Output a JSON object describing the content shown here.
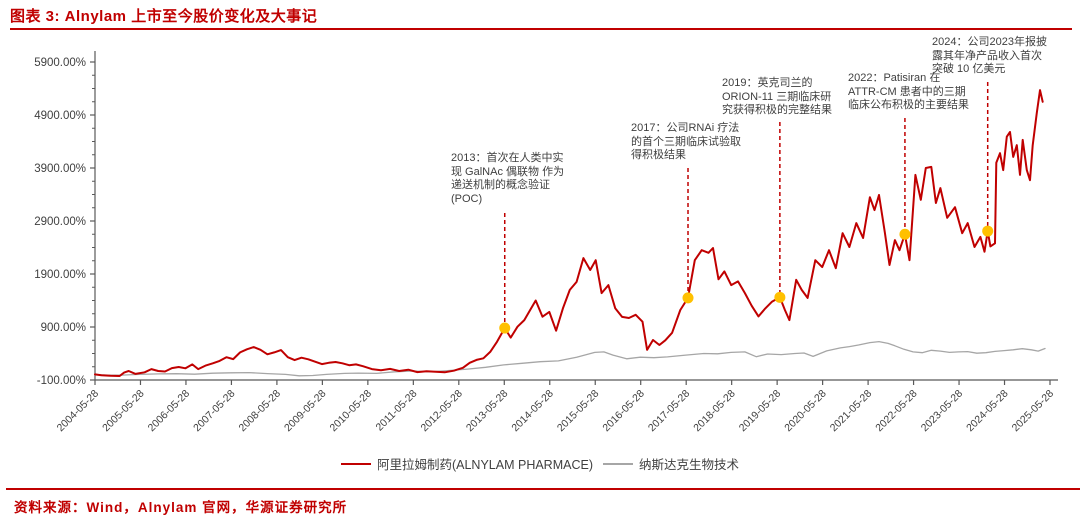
{
  "figure": {
    "title": "图表 3: Alnylam 上市至今股价变化及大事记"
  },
  "source": {
    "label": "资料来源：Wind，Alnylam 官网，华源证券研究所"
  },
  "colors": {
    "accent_red": "#C00000",
    "series_red": "#C00000",
    "series_gray": "#A6A6A6",
    "marker_orange": "#FFC000",
    "axis": "#595959",
    "text_dark": "#3F3F3F"
  },
  "legend": [
    {
      "label": "阿里拉姆制药(ALNYLAM PHARMACE)",
      "color": "#C00000"
    },
    {
      "label": "纳斯达克生物技术",
      "color": "#A6A6A6"
    }
  ],
  "chart_data": {
    "type": "line",
    "title": "Alnylam 上市至今股价变化及大事记",
    "xlabel": "",
    "ylabel": "",
    "grid": false,
    "legend_position": "bottom",
    "y_axis": {
      "min": -100,
      "max": 5900,
      "tick_values": [
        5900,
        4900,
        3900,
        2900,
        1900,
        900,
        -100
      ],
      "tick_labels": [
        "5900.00%",
        "4900.00%",
        "3900.00%",
        "2900.00%",
        "1900.00%",
        "900.00%",
        "-100.00%"
      ]
    },
    "x_axis": {
      "tick_labels": [
        "2004-05-28",
        "2005-05-28",
        "2006-05-28",
        "2007-05-28",
        "2008-05-28",
        "2009-05-28",
        "2010-05-28",
        "2011-05-28",
        "2012-05-28",
        "2013-05-28",
        "2014-05-28",
        "2015-05-28",
        "2016-05-28",
        "2017-05-28",
        "2018-05-28",
        "2019-05-28",
        "2020-05-28",
        "2021-05-28",
        "2022-05-28",
        "2023-05-28",
        "2024-05-28",
        "2025-05-28"
      ]
    },
    "series": [
      {
        "name": "阿里拉姆制药(ALNYLAM PHARMACE)",
        "color": "#C00000",
        "unit": "%",
        "points": [
          [
            2004.41,
            5
          ],
          [
            2004.55,
            -10
          ],
          [
            2004.75,
            -20
          ],
          [
            2004.95,
            -25
          ],
          [
            2005.05,
            40
          ],
          [
            2005.15,
            70
          ],
          [
            2005.3,
            15
          ],
          [
            2005.5,
            45
          ],
          [
            2005.65,
            105
          ],
          [
            2005.8,
            70
          ],
          [
            2005.95,
            60
          ],
          [
            2006.1,
            125
          ],
          [
            2006.25,
            145
          ],
          [
            2006.4,
            120
          ],
          [
            2006.55,
            195
          ],
          [
            2006.68,
            105
          ],
          [
            2006.85,
            175
          ],
          [
            2007.0,
            215
          ],
          [
            2007.15,
            260
          ],
          [
            2007.3,
            330
          ],
          [
            2007.45,
            295
          ],
          [
            2007.6,
            420
          ],
          [
            2007.75,
            480
          ],
          [
            2007.9,
            520
          ],
          [
            2008.05,
            470
          ],
          [
            2008.2,
            385
          ],
          [
            2008.35,
            420
          ],
          [
            2008.5,
            465
          ],
          [
            2008.65,
            330
          ],
          [
            2008.8,
            275
          ],
          [
            2008.95,
            320
          ],
          [
            2009.1,
            290
          ],
          [
            2009.25,
            245
          ],
          [
            2009.4,
            200
          ],
          [
            2009.55,
            225
          ],
          [
            2009.7,
            240
          ],
          [
            2009.85,
            215
          ],
          [
            2010.0,
            180
          ],
          [
            2010.15,
            195
          ],
          [
            2010.3,
            160
          ],
          [
            2010.5,
            105
          ],
          [
            2010.7,
            85
          ],
          [
            2010.9,
            110
          ],
          [
            2011.1,
            70
          ],
          [
            2011.3,
            95
          ],
          [
            2011.5,
            50
          ],
          [
            2011.7,
            65
          ],
          [
            2011.9,
            55
          ],
          [
            2012.1,
            45
          ],
          [
            2012.3,
            75
          ],
          [
            2012.5,
            130
          ],
          [
            2012.65,
            225
          ],
          [
            2012.8,
            280
          ],
          [
            2012.95,
            310
          ],
          [
            2013.1,
            430
          ],
          [
            2013.25,
            620
          ],
          [
            2013.42,
            880
          ],
          [
            2013.55,
            700
          ],
          [
            2013.7,
            905
          ],
          [
            2013.85,
            1030
          ],
          [
            2014.0,
            1250
          ],
          [
            2014.1,
            1400
          ],
          [
            2014.25,
            1095
          ],
          [
            2014.4,
            1185
          ],
          [
            2014.55,
            830
          ],
          [
            2014.7,
            1250
          ],
          [
            2014.85,
            1600
          ],
          [
            2015.0,
            1750
          ],
          [
            2015.15,
            2200
          ],
          [
            2015.3,
            1975
          ],
          [
            2015.42,
            2160
          ],
          [
            2015.55,
            1540
          ],
          [
            2015.7,
            1690
          ],
          [
            2015.85,
            1255
          ],
          [
            2016.0,
            1090
          ],
          [
            2016.15,
            1070
          ],
          [
            2016.3,
            1130
          ],
          [
            2016.45,
            1000
          ],
          [
            2016.55,
            470
          ],
          [
            2016.68,
            655
          ],
          [
            2016.82,
            560
          ],
          [
            2016.95,
            650
          ],
          [
            2017.1,
            790
          ],
          [
            2017.28,
            1220
          ],
          [
            2017.45,
            1450
          ],
          [
            2017.6,
            2160
          ],
          [
            2017.75,
            2350
          ],
          [
            2017.9,
            2300
          ],
          [
            2018.0,
            2390
          ],
          [
            2018.12,
            1800
          ],
          [
            2018.25,
            1950
          ],
          [
            2018.4,
            1690
          ],
          [
            2018.55,
            1760
          ],
          [
            2018.7,
            1540
          ],
          [
            2018.85,
            1300
          ],
          [
            2019.0,
            1100
          ],
          [
            2019.15,
            1250
          ],
          [
            2019.3,
            1380
          ],
          [
            2019.47,
            1460
          ],
          [
            2019.58,
            1220
          ],
          [
            2019.68,
            1030
          ],
          [
            2019.83,
            1790
          ],
          [
            2019.95,
            1600
          ],
          [
            2020.08,
            1450
          ],
          [
            2020.25,
            2160
          ],
          [
            2020.4,
            2030
          ],
          [
            2020.55,
            2350
          ],
          [
            2020.7,
            2010
          ],
          [
            2020.85,
            2670
          ],
          [
            2021.0,
            2410
          ],
          [
            2021.15,
            2860
          ],
          [
            2021.3,
            2580
          ],
          [
            2021.45,
            3350
          ],
          [
            2021.55,
            3105
          ],
          [
            2021.65,
            3390
          ],
          [
            2021.78,
            2675
          ],
          [
            2021.88,
            2070
          ],
          [
            2022.0,
            2540
          ],
          [
            2022.1,
            2350
          ],
          [
            2022.22,
            2650
          ],
          [
            2022.32,
            2160
          ],
          [
            2022.45,
            3770
          ],
          [
            2022.57,
            3300
          ],
          [
            2022.68,
            3900
          ],
          [
            2022.8,
            3920
          ],
          [
            2022.9,
            3240
          ],
          [
            2023.0,
            3520
          ],
          [
            2023.15,
            2960
          ],
          [
            2023.32,
            3160
          ],
          [
            2023.48,
            2670
          ],
          [
            2023.6,
            2860
          ],
          [
            2023.75,
            2410
          ],
          [
            2023.88,
            2600
          ],
          [
            2023.97,
            2320
          ],
          [
            2024.04,
            2710
          ],
          [
            2024.1,
            2420
          ],
          [
            2024.2,
            2480
          ],
          [
            2024.23,
            4000
          ],
          [
            2024.31,
            4180
          ],
          [
            2024.38,
            3860
          ],
          [
            2024.46,
            4490
          ],
          [
            2024.53,
            4580
          ],
          [
            2024.6,
            4110
          ],
          [
            2024.68,
            4330
          ],
          [
            2024.75,
            3770
          ],
          [
            2024.81,
            4430
          ],
          [
            2024.9,
            3860
          ],
          [
            2024.97,
            3670
          ],
          [
            2025.03,
            4330
          ],
          [
            2025.12,
            4940
          ],
          [
            2025.19,
            5370
          ],
          [
            2025.25,
            5150
          ]
        ]
      },
      {
        "name": "纳斯达克生物技术",
        "color": "#A6A6A6",
        "unit": "%",
        "points": [
          [
            2004.41,
            0
          ],
          [
            2004.7,
            -10
          ],
          [
            2005.0,
            -8
          ],
          [
            2005.4,
            5
          ],
          [
            2005.8,
            15
          ],
          [
            2006.2,
            18
          ],
          [
            2006.6,
            10
          ],
          [
            2007.0,
            28
          ],
          [
            2007.4,
            35
          ],
          [
            2007.8,
            40
          ],
          [
            2008.2,
            20
          ],
          [
            2008.6,
            5
          ],
          [
            2008.9,
            -20
          ],
          [
            2009.2,
            -15
          ],
          [
            2009.5,
            5
          ],
          [
            2009.9,
            25
          ],
          [
            2010.2,
            30
          ],
          [
            2010.6,
            25
          ],
          [
            2011.0,
            55
          ],
          [
            2011.4,
            70
          ],
          [
            2011.8,
            55
          ],
          [
            2012.2,
            80
          ],
          [
            2012.6,
            105
          ],
          [
            2013.0,
            140
          ],
          [
            2013.4,
            185
          ],
          [
            2013.8,
            215
          ],
          [
            2014.2,
            245
          ],
          [
            2014.6,
            260
          ],
          [
            2015.0,
            330
          ],
          [
            2015.4,
            420
          ],
          [
            2015.6,
            430
          ],
          [
            2015.8,
            370
          ],
          [
            2016.1,
            300
          ],
          [
            2016.4,
            330
          ],
          [
            2016.7,
            320
          ],
          [
            2017.0,
            335
          ],
          [
            2017.4,
            370
          ],
          [
            2017.8,
            400
          ],
          [
            2018.1,
            395
          ],
          [
            2018.4,
            420
          ],
          [
            2018.7,
            430
          ],
          [
            2018.95,
            340
          ],
          [
            2019.2,
            390
          ],
          [
            2019.5,
            380
          ],
          [
            2019.8,
            400
          ],
          [
            2020.0,
            410
          ],
          [
            2020.2,
            345
          ],
          [
            2020.5,
            450
          ],
          [
            2020.8,
            505
          ],
          [
            2021.0,
            530
          ],
          [
            2021.2,
            560
          ],
          [
            2021.45,
            605
          ],
          [
            2021.65,
            625
          ],
          [
            2021.85,
            590
          ],
          [
            2022.0,
            545
          ],
          [
            2022.2,
            480
          ],
          [
            2022.4,
            430
          ],
          [
            2022.6,
            415
          ],
          [
            2022.8,
            460
          ],
          [
            2023.0,
            445
          ],
          [
            2023.2,
            420
          ],
          [
            2023.4,
            430
          ],
          [
            2023.6,
            435
          ],
          [
            2023.8,
            405
          ],
          [
            2024.0,
            415
          ],
          [
            2024.2,
            440
          ],
          [
            2024.4,
            455
          ],
          [
            2024.6,
            470
          ],
          [
            2024.8,
            490
          ],
          [
            2025.0,
            470
          ],
          [
            2025.15,
            445
          ],
          [
            2025.3,
            495
          ]
        ]
      }
    ],
    "events": [
      {
        "year": "2013",
        "t": 2013.42,
        "value": 880,
        "text": "2013：首次在人类中实\n现 GalNAc 偶联物 作为\n递送机制的概念验证\n(POC)"
      },
      {
        "year": "2017",
        "t": 2017.45,
        "value": 1450,
        "text": "2017：公司RNAi 疗法\n的首个三期临床试验取\n得积极结果"
      },
      {
        "year": "2019",
        "t": 2019.47,
        "value": 1460,
        "text": "2019：英克司兰的\nORION-11 三期临床研\n究获得积极的完整结果"
      },
      {
        "year": "2022",
        "t": 2022.22,
        "value": 2650,
        "text": "2022：Patisiran 在\nATTR-CM 患者中的三期\n临床公布积极的主要结果"
      },
      {
        "year": "2024",
        "t": 2024.04,
        "value": 2710,
        "text": "2024：公司2023年报披\n露其年净产品收入首次\n突破 10 亿美元"
      }
    ]
  }
}
